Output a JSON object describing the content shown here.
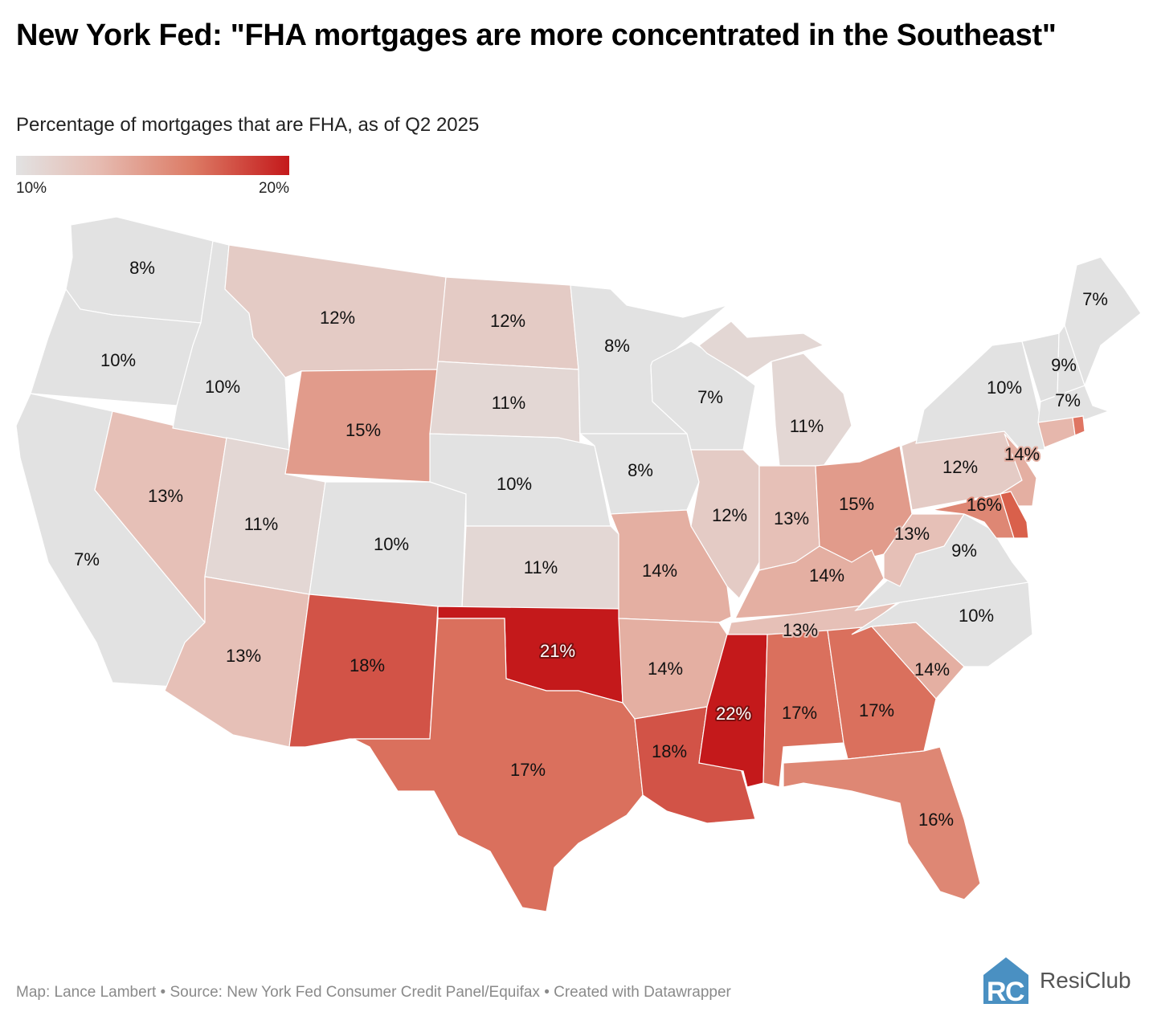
{
  "header": {
    "title": "New York Fed: \"FHA mortgages are more concentrated in the Southeast\"",
    "subtitle": "Percentage of mortgages that are FHA, as of Q2 2025"
  },
  "legend": {
    "min_label": "10%",
    "max_label": "20%",
    "min": 10,
    "max": 20,
    "colors": [
      "#e2e2e2",
      "#e6bcb2",
      "#dc7a64",
      "#c4191b"
    ]
  },
  "map_data": {
    "type": "choropleth",
    "regions": [
      {
        "label": "8%",
        "value": 8
      },
      {
        "label": "10%",
        "value": 10
      },
      {
        "label": "7%",
        "value": 7
      },
      {
        "label": "13%",
        "value": 13
      },
      {
        "label": "10%",
        "value": 10
      },
      {
        "label": "12%",
        "value": 12
      },
      {
        "label": "15%",
        "value": 15
      },
      {
        "label": "11%",
        "value": 11
      },
      {
        "label": "10%",
        "value": 10
      },
      {
        "label": "13%",
        "value": 13
      },
      {
        "label": "18%",
        "value": 18
      },
      {
        "label": "12%",
        "value": 12
      },
      {
        "label": "11%",
        "value": 11
      },
      {
        "label": "10%",
        "value": 10
      },
      {
        "label": "11%",
        "value": 11
      },
      {
        "label": "21%",
        "value": 21
      },
      {
        "label": "17%",
        "value": 17
      },
      {
        "label": "8%",
        "value": 8
      },
      {
        "label": "8%",
        "value": 8
      },
      {
        "label": "14%",
        "value": 14
      },
      {
        "label": "14%",
        "value": 14
      },
      {
        "label": "18%",
        "value": 18
      },
      {
        "label": "7%",
        "value": 7
      },
      {
        "label": "12%",
        "value": 12
      },
      {
        "label": "11%",
        "value": 11
      },
      {
        "label": "",
        "value": 11
      },
      {
        "label": "13%",
        "value": 13
      },
      {
        "label": "15%",
        "value": 15
      },
      {
        "label": "14%",
        "value": 14
      },
      {
        "label": "13%",
        "value": 13
      },
      {
        "label": "22%",
        "value": 22
      },
      {
        "label": "17%",
        "value": 17
      },
      {
        "label": "17%",
        "value": 17
      },
      {
        "label": "16%",
        "value": 16
      },
      {
        "label": "14%",
        "value": 14
      },
      {
        "label": "10%",
        "value": 10
      },
      {
        "label": "9%",
        "value": 9
      },
      {
        "label": "13%",
        "value": 13
      },
      {
        "label": "12%",
        "value": 12
      },
      {
        "label": "10%",
        "value": 10
      },
      {
        "label": "14%",
        "value": 14
      },
      {
        "label": "16%",
        "value": 16
      },
      {
        "label": "",
        "color": "#d9604b"
      },
      {
        "label": "",
        "color": "#e0e0e0"
      },
      {
        "label": "9%",
        "value": 9
      },
      {
        "label": "7%",
        "value": 7
      },
      {
        "label": "7%",
        "value": 7
      },
      {
        "label": "",
        "color": "#e6b7ac"
      },
      {
        "label": "",
        "color": "#df7563"
      }
    ]
  },
  "footer": {
    "credit": "Map: Lance Lambert • Source: New York Fed Consumer Credit Panel/Equifax • Created with Datawrapper"
  },
  "logo": {
    "text": "ResiClub",
    "mark": "RC",
    "color": "#4a90c2"
  }
}
